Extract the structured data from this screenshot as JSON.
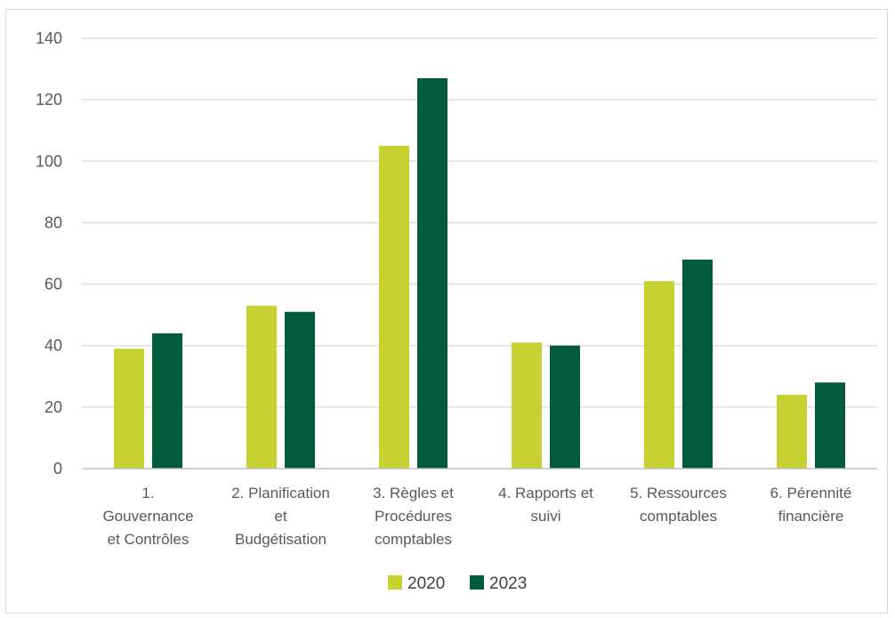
{
  "chart_data": {
    "type": "bar",
    "categories": [
      [
        "1.",
        "Gouvernance",
        "et Contrôles"
      ],
      [
        "2. Planification",
        "et",
        "Budgétisation"
      ],
      [
        "3. Règles et",
        "Procédures",
        "comptables"
      ],
      [
        "4. Rapports et",
        "suivi"
      ],
      [
        "5. Ressources",
        "comptables"
      ],
      [
        "6. Pérennité",
        "financière"
      ]
    ],
    "series": [
      {
        "name": "2020",
        "color": "#c8d132",
        "values": [
          39,
          53,
          105,
          41,
          61,
          24
        ]
      },
      {
        "name": "2023",
        "color": "#005a3c",
        "values": [
          44,
          51,
          127,
          40,
          68,
          28
        ]
      }
    ],
    "yticks": [
      "0",
      "20",
      "40",
      "60",
      "80",
      "100",
      "120",
      "140"
    ],
    "ylim": [
      0,
      140
    ],
    "grid": true,
    "legend": "bottom-center",
    "grid_color": "#d9d9d9",
    "axis_color": "#bfbfbf"
  }
}
